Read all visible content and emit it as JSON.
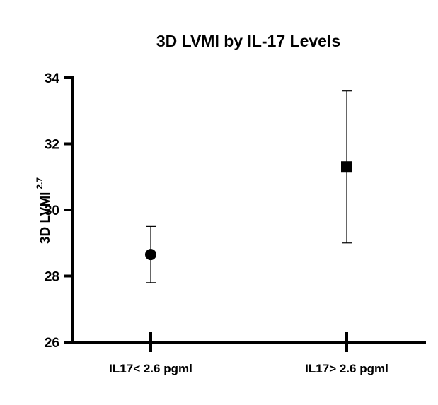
{
  "chart_data": {
    "type": "scatter",
    "title": "3D LVMI by IL-17 Levels",
    "ylabel": "3D LVMI",
    "ylabel_superscript": "2.7",
    "xlabel": "",
    "ylim": [
      26,
      34
    ],
    "yticks": [
      26,
      28,
      30,
      32,
      34
    ],
    "ytick_labels": [
      "26",
      "28",
      "30",
      "32",
      "34"
    ],
    "categories": [
      "IL17< 2.6 pgml",
      "IL17> 2.6 pgml"
    ],
    "series": [
      {
        "category": "IL17< 2.6 pgml",
        "marker": "circle",
        "mean": 28.65,
        "error_low": 27.8,
        "error_high": 29.5
      },
      {
        "category": "IL17> 2.6 pgml",
        "marker": "square",
        "mean": 31.3,
        "error_low": 29.0,
        "error_high": 33.6
      }
    ],
    "grid": false,
    "legend": "none",
    "colors": {
      "marker": "#000000",
      "axis": "#000000"
    }
  }
}
